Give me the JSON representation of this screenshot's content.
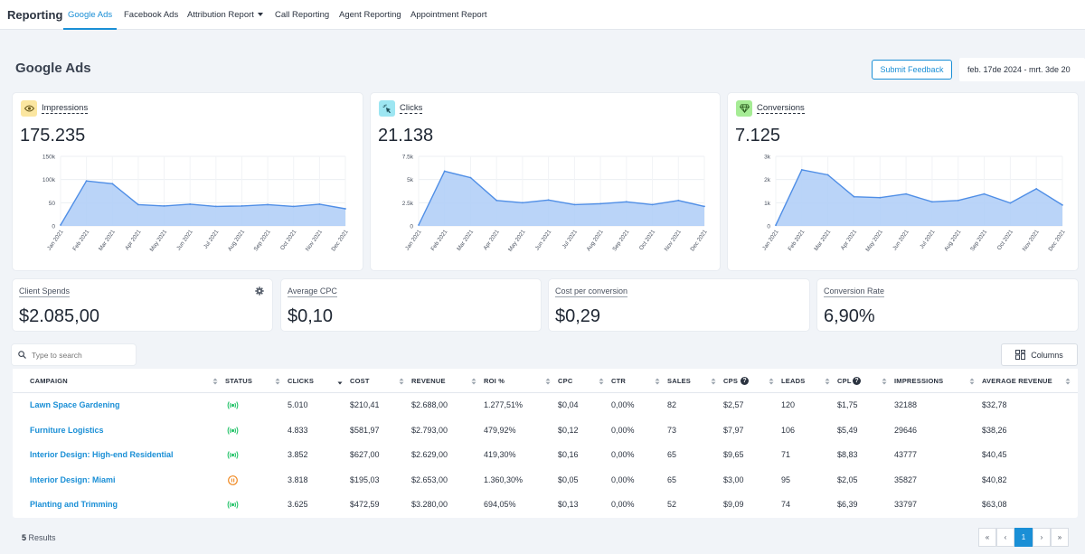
{
  "nav": {
    "brand": "Reporting",
    "tabs": [
      {
        "label": "Google Ads",
        "active": true
      },
      {
        "label": "Facebook Ads"
      },
      {
        "label": "Attribution Report",
        "dropdown": true
      },
      {
        "label": "Call Reporting"
      },
      {
        "label": "Agent Reporting"
      },
      {
        "label": "Appointment Report"
      }
    ]
  },
  "page": {
    "title": "Google Ads",
    "feedback_label": "Submit Feedback",
    "date_range": "feb. 17de 2024 - mrt. 3de 20"
  },
  "metrics": [
    {
      "label": "Impressions",
      "value": "175.235",
      "icon": "eye-icon",
      "icon_bg": "#fbe6a0"
    },
    {
      "label": "Clicks",
      "value": "21.138",
      "icon": "cursor-click-icon",
      "icon_bg": "#9de6f2"
    },
    {
      "label": "Conversions",
      "value": "7.125",
      "icon": "diamond-icon",
      "icon_bg": "#a6ec95"
    }
  ],
  "chart_data": [
    {
      "type": "area",
      "title": "Impressions",
      "x": [
        "Jan 2021",
        "Feb 2021",
        "Mar 2021",
        "Apr 2021",
        "May 2021",
        "Jun 2021",
        "Jul 2021",
        "Aug 2021",
        "Sep 2021",
        "Oct 2021",
        "Nov 2021",
        "Dec 2021"
      ],
      "values": [
        2000,
        97000,
        91000,
        46000,
        43000,
        47000,
        42000,
        43000,
        46000,
        42000,
        47000,
        37000
      ],
      "yticks": [
        "0",
        "50",
        "100k",
        "150k"
      ],
      "ylim": [
        0,
        150000
      ],
      "grid": true,
      "color": "#aecdf7"
    },
    {
      "type": "area",
      "title": "Clicks",
      "x": [
        "Jan 2021",
        "Feb 2021",
        "Mar 2021",
        "Apr 2021",
        "May 2021",
        "Jun 2021",
        "Jul 2021",
        "Aug 2021",
        "Sep 2021",
        "Oct 2021",
        "Nov 2021",
        "Dec 2021"
      ],
      "values": [
        100,
        5900,
        5200,
        2750,
        2500,
        2800,
        2300,
        2400,
        2600,
        2300,
        2750,
        2100
      ],
      "yticks": [
        "0",
        "2.5k",
        "5k",
        "7.5k"
      ],
      "ylim": [
        0,
        7500
      ],
      "grid": true,
      "color": "#aecdf7"
    },
    {
      "type": "area",
      "title": "Conversions",
      "x": [
        "Jan 2021",
        "Feb 2021",
        "Mar 2021",
        "Apr 2021",
        "May 2021",
        "Jun 2021",
        "Jul 2021",
        "Aug 2021",
        "Sep 2021",
        "Oct 2021",
        "Nov 2021",
        "Dec 2021"
      ],
      "values": [
        30,
        2420,
        2200,
        1260,
        1220,
        1380,
        1040,
        1100,
        1380,
        990,
        1600,
        900
      ],
      "yticks": [
        "0",
        "1k",
        "2k",
        "3k"
      ],
      "ylim": [
        0,
        3000
      ],
      "grid": true,
      "color": "#aecdf7"
    }
  ],
  "kpis": [
    {
      "label": "Client Spends",
      "value": "$2.085,00",
      "gear": true
    },
    {
      "label": "Average CPC",
      "value": "$0,10"
    },
    {
      "label": "Cost per conversion",
      "value": "$0,29"
    },
    {
      "label": "Conversion Rate",
      "value": "6,90%"
    }
  ],
  "search": {
    "placeholder": "Type to search"
  },
  "columns_button": "Columns",
  "table": {
    "headers": [
      "CAMPAIGN",
      "STATUS",
      "CLICKS",
      "COST",
      "REVENUE",
      "ROI %",
      "CPC",
      "CTR",
      "SALES",
      "CPS",
      "LEADS",
      "CPL",
      "IMPRESSIONS",
      "AVERAGE REVENUE"
    ],
    "rows": [
      {
        "campaign": "Lawn Space Gardening",
        "status": "active",
        "cells": [
          "5.010",
          "$210,41",
          "$2.688,00",
          "1.277,51%",
          "$0,04",
          "0,00%",
          "82",
          "$2,57",
          "120",
          "$1,75",
          "32188",
          "$32,78"
        ]
      },
      {
        "campaign": "Furniture Logistics",
        "status": "active",
        "cells": [
          "4.833",
          "$581,97",
          "$2.793,00",
          "479,92%",
          "$0,12",
          "0,00%",
          "73",
          "$7,97",
          "106",
          "$5,49",
          "29646",
          "$38,26"
        ]
      },
      {
        "campaign": "Interior Design: High-end Residential",
        "status": "active",
        "cells": [
          "3.852",
          "$627,00",
          "$2.629,00",
          "419,30%",
          "$0,16",
          "0,00%",
          "65",
          "$9,65",
          "71",
          "$8,83",
          "43777",
          "$40,45"
        ]
      },
      {
        "campaign": "Interior Design: Miami",
        "status": "paused",
        "cells": [
          "3.818",
          "$195,03",
          "$2.653,00",
          "1.360,30%",
          "$0,05",
          "0,00%",
          "65",
          "$3,00",
          "95",
          "$2,05",
          "35827",
          "$40,82"
        ]
      },
      {
        "campaign": "Planting and Trimming",
        "status": "active",
        "cells": [
          "3.625",
          "$472,59",
          "$3.280,00",
          "694,05%",
          "$0,13",
          "0,00%",
          "52",
          "$9,09",
          "74",
          "$6,39",
          "33797",
          "$63,08"
        ]
      }
    ]
  },
  "footer": {
    "results_count": "5",
    "results_label": "Results"
  },
  "pagination": {
    "first": "«",
    "prev": "‹",
    "current": "1",
    "next": "›",
    "last": "»"
  },
  "colors": {
    "accent": "#1a8fd6",
    "active_status": "#27c46b",
    "paused_status": "#f08a24"
  }
}
